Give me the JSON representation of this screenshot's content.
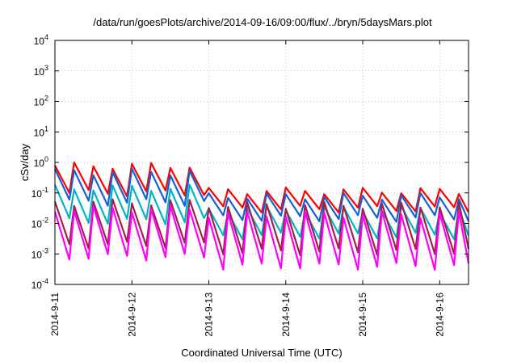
{
  "chart_data": {
    "type": "line",
    "title": "/data/run/goesPlots/archive/2014-09-16/09:00/flux/../bryn/5daysMars.plot",
    "xlabel": "Coordinated Universal Time (UTC)",
    "ylabel": "cSv/day",
    "yscale": "log",
    "ylim": [
      "1e-4",
      "1e4"
    ],
    "xlim": [
      "2014-09-11",
      "2014-09-16 09:00"
    ],
    "grid": true,
    "legend": "none",
    "y_ticks": [
      {
        "base": "10",
        "exp": "-4"
      },
      {
        "base": "10",
        "exp": "-3"
      },
      {
        "base": "10",
        "exp": "-2"
      },
      {
        "base": "10",
        "exp": "-1"
      },
      {
        "base": "10",
        "exp": "0"
      },
      {
        "base": "10",
        "exp": "1"
      },
      {
        "base": "10",
        "exp": "2"
      },
      {
        "base": "10",
        "exp": "3"
      },
      {
        "base": "10",
        "exp": "4"
      }
    ],
    "x_ticks": [
      "2014-9-11",
      "2014-9-12",
      "2014-9-13",
      "2014-9-14",
      "2014-9-15",
      "2014-9-16"
    ],
    "periodic_pattern": {
      "period_hours": 6,
      "phase_2_start": "2014-09-13",
      "series": [
        {
          "color": "#ff0000",
          "peak_phase1": 0.8,
          "valley_phase1": 0.1,
          "peak_phase2": 0.12,
          "valley_phase2": 0.03
        },
        {
          "color": "#1560d8",
          "peak_phase1": 0.5,
          "valley_phase1": 0.05,
          "peak_phase2": 0.08,
          "valley_phase2": 0.015
        },
        {
          "color": "#00b4c8",
          "peak_phase1": 0.15,
          "valley_phase1": 0.012,
          "peak_phase2": 0.03,
          "valley_phase2": 0.004
        },
        {
          "color": "#a0204c",
          "peak_phase1": 0.05,
          "valley_phase1": 0.002,
          "peak_phase2": 0.04,
          "valley_phase2": 0.0012
        },
        {
          "color": "#ff00ff",
          "peak_phase1": 0.03,
          "valley_phase1": 0.0008,
          "peak_phase2": 0.02,
          "valley_phase2": 0.0004
        }
      ]
    }
  }
}
